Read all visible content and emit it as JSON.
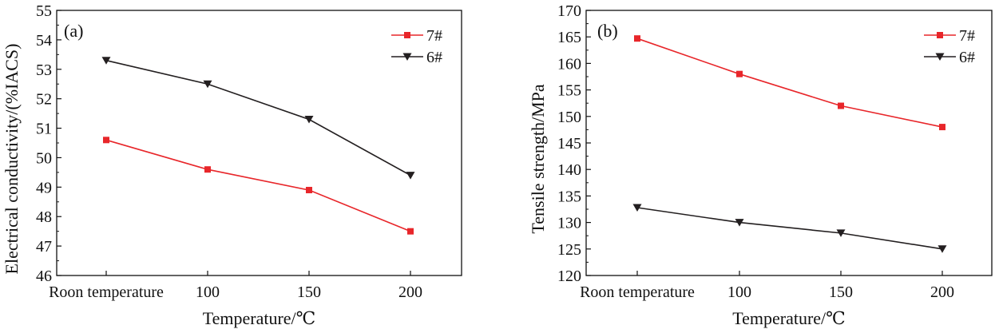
{
  "chart_data": [
    {
      "type": "line",
      "panel_label": "(a)",
      "categories": [
        "Roon temperature",
        "100",
        "150",
        "200"
      ],
      "xlabel": "Temperature/℃",
      "ylabel": "Electrical conductivity/(%IACS)",
      "ylim": [
        46,
        55
      ],
      "yticks": [
        "46",
        "47",
        "48",
        "49",
        "50",
        "51",
        "52",
        "53",
        "54",
        "55"
      ],
      "grid": false,
      "legend_position": "top-right",
      "series": [
        {
          "name": "7#",
          "color": "#e8262a",
          "marker": "square",
          "values": [
            50.6,
            49.6,
            48.9,
            47.5
          ]
        },
        {
          "name": "6#",
          "color": "#231f20",
          "marker": "triangle-down",
          "values": [
            53.3,
            52.5,
            51.3,
            49.4
          ]
        }
      ]
    },
    {
      "type": "line",
      "panel_label": "(b)",
      "categories": [
        "Roon temperature",
        "100",
        "150",
        "200"
      ],
      "xlabel": "Temperature/℃",
      "ylabel": "Tensile strength/MPa",
      "ylim": [
        120,
        170
      ],
      "yticks": [
        "120",
        "125",
        "130",
        "135",
        "140",
        "145",
        "150",
        "155",
        "160",
        "165",
        "170"
      ],
      "grid": false,
      "legend_position": "top-right",
      "series": [
        {
          "name": "7#",
          "color": "#e8262a",
          "marker": "square",
          "values": [
            164.7,
            158,
            152,
            148
          ]
        },
        {
          "name": "6#",
          "color": "#231f20",
          "marker": "triangle-down",
          "values": [
            132.8,
            130,
            128,
            125
          ]
        }
      ]
    }
  ]
}
